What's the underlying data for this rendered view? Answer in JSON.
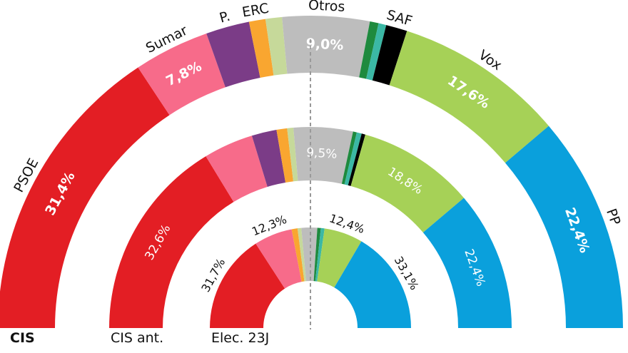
{
  "chart_data": {
    "type": "pie",
    "variant": "concentric semicircles",
    "colors": {
      "PSOE": "#e31e24",
      "Sumar": "#f76b8a",
      "P.": "#7b3c87",
      "ERC": "#f9a630",
      "light-green": "#c6d99a",
      "Otros": "#bdbdbd",
      "dark-green": "#1e8a3e",
      "teal": "#3bb8a5",
      "SAF": "#000000",
      "Vox": "#a6d157",
      "PP": "#0aa0dc"
    },
    "rings": [
      {
        "title": "CIS",
        "segments": [
          {
            "party": "PSOE",
            "name": "PSOE",
            "value": 31.4,
            "label": "31,4%"
          },
          {
            "party": "Sumar",
            "name": "Sumar",
            "value": 7.8,
            "label": "7,8%"
          },
          {
            "party": "P.",
            "name": "P.",
            "value": 4.5,
            "label": null
          },
          {
            "party": "ERC",
            "name": "ERC",
            "value": 1.7,
            "label": null
          },
          {
            "party": "light-green",
            "name": null,
            "value": 1.7,
            "label": null
          },
          {
            "party": "Otros",
            "name": "Otros",
            "value": 9.0,
            "label": "9,0%"
          },
          {
            "party": "dark-green",
            "name": null,
            "value": 0.9,
            "label": null
          },
          {
            "party": "teal",
            "name": null,
            "value": 0.8,
            "label": null
          },
          {
            "party": "SAF",
            "name": "SAF",
            "value": 2.2,
            "label": null
          },
          {
            "party": "Vox",
            "name": "Vox",
            "value": 17.6,
            "label": "17,6%"
          },
          {
            "party": "PP",
            "name": "PP",
            "value": 22.4,
            "label": "22,4%"
          }
        ]
      },
      {
        "title": "CIS ant.",
        "segments": [
          {
            "party": "PSOE",
            "value": 32.6,
            "label": "32,6%"
          },
          {
            "party": "Sumar",
            "value": 8.0,
            "label": null
          },
          {
            "party": "P.",
            "value": 4.0,
            "label": null
          },
          {
            "party": "ERC",
            "value": 1.7,
            "label": null
          },
          {
            "party": "light-green",
            "value": 1.0,
            "label": null
          },
          {
            "party": "Otros",
            "value": 9.5,
            "label": "9,5%"
          },
          {
            "party": "dark-green",
            "value": 0.6,
            "label": null
          },
          {
            "party": "teal",
            "value": 0.8,
            "label": null
          },
          {
            "party": "SAF",
            "value": 0.6,
            "label": null
          },
          {
            "party": "Vox",
            "value": 18.8,
            "label": "18,8%"
          },
          {
            "party": "PP",
            "value": 22.4,
            "label": "22,4%"
          }
        ]
      },
      {
        "title": "Elec. 23J",
        "segments": [
          {
            "party": "PSOE",
            "value": 31.7,
            "label": "31,7%"
          },
          {
            "party": "Sumar",
            "value": 12.3,
            "label": "12,3%"
          },
          {
            "party": "ERC",
            "value": 1.9,
            "label": null
          },
          {
            "party": "light-green",
            "value": 1.2,
            "label": null
          },
          {
            "party": "Otros",
            "value": 5.1,
            "label": null
          },
          {
            "party": "dark-green",
            "value": 1.1,
            "label": null
          },
          {
            "party": "teal",
            "value": 1.2,
            "label": null
          },
          {
            "party": "Vox",
            "value": 12.4,
            "label": "12,4%"
          },
          {
            "party": "PP",
            "value": 33.1,
            "label": "33,1%"
          }
        ]
      }
    ]
  }
}
